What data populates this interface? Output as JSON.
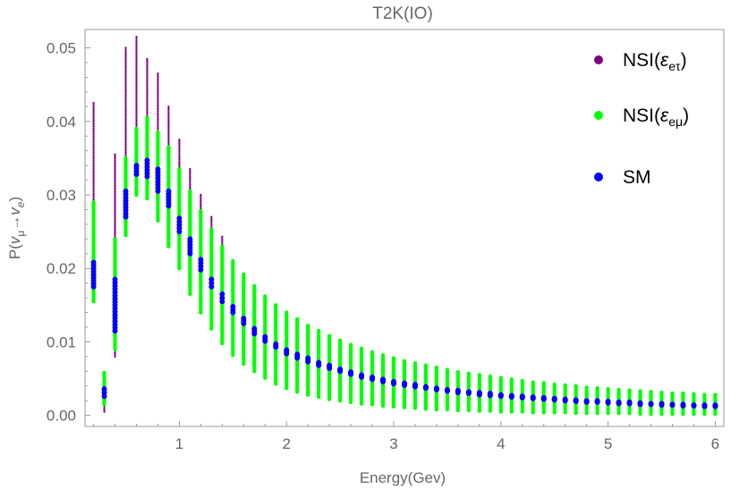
{
  "chart_data": {
    "type": "scatter",
    "title": "T2K(IO)",
    "xlabel": "Energy(Gev)",
    "ylabel_parts": {
      "base": "P(",
      "sym1": "v",
      "sub1": "μ",
      "arrow": "→",
      "sym2": "v",
      "sub2": "e",
      "close": ")"
    },
    "xlim": [
      0.12,
      6.08
    ],
    "ylim": [
      -0.0015,
      0.0525
    ],
    "x_ticks": [
      1,
      2,
      3,
      4,
      5,
      6
    ],
    "x_tick_labels": [
      "1",
      "2",
      "3",
      "4",
      "5",
      "6"
    ],
    "y_ticks": [
      0.0,
      0.01,
      0.02,
      0.03,
      0.04,
      0.05
    ],
    "y_tick_labels": [
      "0.00",
      "0.01",
      "0.02",
      "0.03",
      "0.04",
      "0.05"
    ],
    "legend_position": "top-right",
    "x": [
      0.2,
      0.3,
      0.4,
      0.5,
      0.6,
      0.7,
      0.8,
      0.9,
      1.0,
      1.1,
      1.2,
      1.3,
      1.4,
      1.5,
      1.6,
      1.7,
      1.8,
      1.9,
      2.0,
      2.1,
      2.2,
      2.3,
      2.4,
      2.5,
      2.6,
      2.7,
      2.8,
      2.9,
      3.0,
      3.1,
      3.2,
      3.3,
      3.4,
      3.5,
      3.6,
      3.7,
      3.8,
      3.9,
      4.0,
      4.1,
      4.2,
      4.3,
      4.4,
      4.5,
      4.6,
      4.7,
      4.8,
      4.9,
      5.0,
      5.1,
      5.2,
      5.3,
      5.4,
      5.5,
      5.6,
      5.7,
      5.8,
      5.9,
      6.0
    ],
    "series": [
      {
        "name": "NSI(ε_eτ)",
        "label_parts": {
          "base": "NSI(",
          "sym": "ε",
          "sub": "eτ",
          "close": ")"
        },
        "color": "#800080",
        "min": [
          0.0175,
          0.0005,
          0.008,
          0.0245,
          0.03,
          0.0295,
          0.0285,
          0.026,
          0.0245,
          0.021,
          0.019,
          0.017,
          0.0155,
          0.014,
          0.0125,
          0.0115,
          0.0105,
          0.0098,
          0.009,
          0.0084,
          0.0078,
          0.0072,
          0.0067,
          0.0063,
          0.0059,
          0.0055,
          0.0052,
          0.0049,
          0.0046,
          0.0043,
          0.0041,
          0.0039,
          0.0037,
          0.0035,
          0.0033,
          0.0032,
          0.003,
          0.0029,
          0.0027,
          0.0026,
          0.0025,
          0.0024,
          0.0023,
          0.0022,
          0.0021,
          0.002,
          0.0019,
          0.0019,
          0.0018,
          0.0017,
          0.0017,
          0.0016,
          0.0015,
          0.0015,
          0.0014,
          0.0014,
          0.0013,
          0.0013,
          0.0013
        ],
        "max": [
          0.0425,
          0.0058,
          0.0355,
          0.05,
          0.0515,
          0.0485,
          0.0465,
          0.042,
          0.0375,
          0.0335,
          0.03,
          0.027,
          0.0243,
          0.021,
          0.0185,
          0.0165,
          0.0148,
          0.0138,
          0.0128,
          0.0119,
          0.011,
          0.0103,
          0.0096,
          0.009,
          0.0085,
          0.008,
          0.0075,
          0.0071,
          0.0067,
          0.0063,
          0.006,
          0.0057,
          0.0054,
          0.0051,
          0.0049,
          0.0047,
          0.0045,
          0.0043,
          0.0041,
          0.0039,
          0.0037,
          0.0036,
          0.0034,
          0.0033,
          0.0032,
          0.0031,
          0.003,
          0.0029,
          0.0028,
          0.0027,
          0.0026,
          0.0026,
          0.0025,
          0.0024,
          0.0024,
          0.0023,
          0.0023,
          0.0022,
          0.0022
        ]
      },
      {
        "name": "NSI(ε_eμ)",
        "label_parts": {
          "base": "NSI(",
          "sym": "ε",
          "sub": "eμ",
          "close": ")"
        },
        "color": "#00ff00",
        "min": [
          0.0155,
          0.0015,
          0.009,
          0.0245,
          0.03,
          0.0295,
          0.0265,
          0.023,
          0.02,
          0.0165,
          0.014,
          0.0118,
          0.0098,
          0.0082,
          0.007,
          0.006,
          0.0051,
          0.0043,
          0.0037,
          0.0032,
          0.0028,
          0.0025,
          0.0022,
          0.002,
          0.0018,
          0.0016,
          0.0015,
          0.0013,
          0.0012,
          0.0011,
          0.001,
          0.0009,
          0.0008,
          0.0008,
          0.0007,
          0.0007,
          0.0006,
          0.0006,
          0.0005,
          0.0005,
          0.0005,
          0.0004,
          0.0004,
          0.0004,
          0.0004,
          0.0003,
          0.0003,
          0.0003,
          0.0003,
          0.0003,
          0.0003,
          0.0002,
          0.0002,
          0.0002,
          0.0002,
          0.0002,
          0.0002,
          0.0002,
          0.0002
        ],
        "max": [
          0.029,
          0.0058,
          0.024,
          0.035,
          0.039,
          0.0405,
          0.0385,
          0.0365,
          0.0335,
          0.0305,
          0.0278,
          0.0253,
          0.023,
          0.021,
          0.0192,
          0.0176,
          0.0162,
          0.015,
          0.014,
          0.0131,
          0.0122,
          0.0115,
          0.0108,
          0.0102,
          0.0096,
          0.0091,
          0.0086,
          0.0082,
          0.0078,
          0.0074,
          0.0071,
          0.0068,
          0.0065,
          0.0062,
          0.0059,
          0.0057,
          0.0055,
          0.0053,
          0.0051,
          0.0049,
          0.0047,
          0.0045,
          0.0044,
          0.0042,
          0.0041,
          0.004,
          0.0038,
          0.0037,
          0.0036,
          0.0035,
          0.0034,
          0.0033,
          0.0032,
          0.0031,
          0.003,
          0.003,
          0.0029,
          0.0028,
          0.0028
        ]
      },
      {
        "name": "SM",
        "color": "#0000ff",
        "min": [
          0.0175,
          0.0026,
          0.0115,
          0.027,
          0.0328,
          0.0325,
          0.0305,
          0.0285,
          0.025,
          0.022,
          0.0198,
          0.0175,
          0.0155,
          0.014,
          0.0125,
          0.0111,
          0.0101,
          0.0093,
          0.0084,
          0.0078,
          0.0073,
          0.0068,
          0.0064,
          0.006,
          0.0056,
          0.0052,
          0.0049,
          0.0046,
          0.0043,
          0.0041,
          0.0039,
          0.0037,
          0.0035,
          0.0033,
          0.0031,
          0.003,
          0.0028,
          0.0027,
          0.0026,
          0.0025,
          0.0024,
          0.0023,
          0.0022,
          0.0021,
          0.002,
          0.0019,
          0.0018,
          0.0018,
          0.0017,
          0.0016,
          0.0016,
          0.0015,
          0.0015,
          0.0014,
          0.0014,
          0.0013,
          0.0013,
          0.0012,
          0.0012
        ],
        "max": [
          0.0208,
          0.0036,
          0.0185,
          0.0305,
          0.034,
          0.0347,
          0.0335,
          0.0305,
          0.0268,
          0.024,
          0.0212,
          0.0185,
          0.0165,
          0.0148,
          0.0132,
          0.0118,
          0.0107,
          0.0097,
          0.0089,
          0.0083,
          0.0078,
          0.0072,
          0.0068,
          0.0063,
          0.0059,
          0.0055,
          0.0052,
          0.0049,
          0.0046,
          0.0044,
          0.0042,
          0.0039,
          0.0037,
          0.0035,
          0.0034,
          0.0032,
          0.0031,
          0.003,
          0.0028,
          0.0027,
          0.0026,
          0.0025,
          0.0024,
          0.0023,
          0.0022,
          0.0021,
          0.002,
          0.002,
          0.0019,
          0.0018,
          0.0018,
          0.0017,
          0.0016,
          0.0016,
          0.0015,
          0.0015,
          0.0014,
          0.0014,
          0.0014
        ]
      }
    ]
  }
}
